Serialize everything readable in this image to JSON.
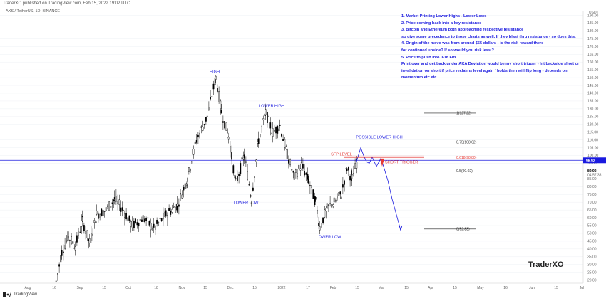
{
  "header": {
    "text": "TraderXO published on TradingView.com, Feb 15, 2022 19:02 UTC"
  },
  "symbol": {
    "text": "AXS / TetherUS, 1D, BINANCE"
  },
  "notes": [
    "1. Market Printing Lower Highs - Lower Lows",
    "2. Price coming back into a key resistance",
    "3. Bitcoin and Ethereum both approaching respective resistance",
    "so give some precedence to those charts as well.  If they blast thru resistance - so does this.",
    "4. Origin of the move was from around $55 dollars - is the risk reward there",
    "for continued upside? If so would you risk less ?",
    "5. Price to push into .618 FIB",
    "Print over and get back under AKA Deviation would be my short trigger - hit backside short or",
    "invalidation on short if price reclaims level again / holds then will flip long - depends on",
    "momentum etc etc..."
  ],
  "footer": {
    "brand": "TradingView"
  },
  "watermark": "TraderXO",
  "colors": {
    "accent": "#1a1adf",
    "red": "#e53935",
    "up": "#ffffff",
    "down": "#000000",
    "grid": "#eef0f4"
  },
  "chart_data": {
    "type": "candlestick",
    "currency": "USDT",
    "y_ticks": [
      20,
      25,
      30,
      35,
      40,
      45,
      50,
      55,
      60,
      65,
      70,
      75,
      80,
      85,
      90,
      95,
      100,
      105,
      110,
      115,
      120,
      125,
      130,
      135,
      140,
      145,
      150,
      155,
      160,
      165,
      170,
      175,
      180,
      185,
      190
    ],
    "ylim": [
      18,
      193
    ],
    "x_ticks": [
      "Aug",
      "16",
      "Sep",
      "15",
      "Oct",
      "18",
      "Nov",
      "15",
      "Dec",
      "15",
      "2022",
      "17",
      "Feb",
      "15",
      "Mar",
      "15",
      "Apr",
      "15",
      "May",
      "16",
      "Jun",
      "15",
      "Jul"
    ],
    "last_price": "96.92",
    "price_label_2": "89.96",
    "countdown": "04:57:33",
    "horizontal_line": 96.92,
    "annotations": [
      {
        "text": "HIGH",
        "price": 153
      },
      {
        "text": "LOWER HIGH",
        "price": 131
      },
      {
        "text": "LOWER LOW",
        "price": 69
      },
      {
        "text": "LOWER LOW",
        "price": 47
      },
      {
        "text": "POSSIBLE LOWER HIGH",
        "price": 111
      },
      {
        "text": "SFP LEVEL",
        "price": 100
      },
      {
        "text": "SHORT TRIGGER",
        "price": 95
      }
    ],
    "fib_levels": [
      {
        "label": "1(127.22)",
        "value": 127.22
      },
      {
        "label": "0.75(108.62)",
        "value": 108.62
      },
      {
        "label": "0.618(98.80)",
        "value": 98.8
      },
      {
        "label": "0.5(90.02)",
        "value": 90.02
      },
      {
        "label": "0(52.83)",
        "value": 52.83
      }
    ]
  }
}
